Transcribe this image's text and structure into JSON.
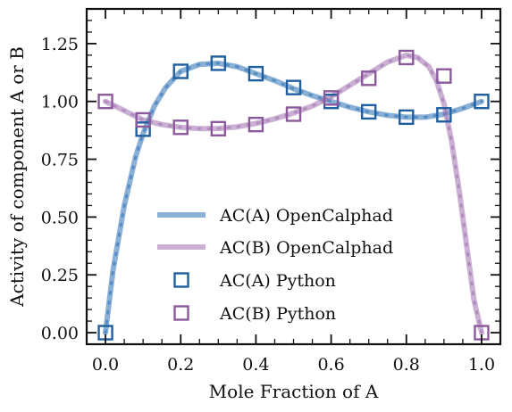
{
  "chart_data": {
    "type": "line",
    "title": "",
    "xlabel": "Mole Fraction of A",
    "ylabel": "Activity of component A or B",
    "xlim": [
      -0.05,
      1.05
    ],
    "ylim": [
      -0.05,
      1.4
    ],
    "xticks": [
      0.0,
      0.2,
      0.4,
      0.6,
      0.8,
      1.0
    ],
    "xtick_labels": [
      "0.0",
      "0.2",
      "0.4",
      "0.6",
      "0.8",
      "1.0"
    ],
    "yticks": [
      0.0,
      0.25,
      0.5,
      0.75,
      1.0,
      1.25
    ],
    "ytick_labels": [
      "0.00",
      "0.25",
      "0.50",
      "0.75",
      "1.00",
      "1.25"
    ],
    "grid": false,
    "legend_position": "lower-center",
    "series": [
      {
        "name": "AC(A) OpenCalphad",
        "kind": "line",
        "color": "#2c6fb4",
        "x": [
          0.0,
          0.02,
          0.05,
          0.08,
          0.1,
          0.13,
          0.16,
          0.2,
          0.25,
          0.3,
          0.35,
          0.4,
          0.45,
          0.5,
          0.55,
          0.6,
          0.65,
          0.7,
          0.75,
          0.8,
          0.85,
          0.9,
          0.95,
          1.0
        ],
        "y": [
          0.0,
          0.27,
          0.55,
          0.76,
          0.86,
          0.98,
          1.06,
          1.13,
          1.16,
          1.165,
          1.15,
          1.12,
          1.09,
          1.055,
          1.025,
          1.0,
          0.975,
          0.955,
          0.94,
          0.932,
          0.932,
          0.945,
          0.97,
          1.0
        ]
      },
      {
        "name": "AC(B) OpenCalphad",
        "kind": "line",
        "color": "#9e6fae",
        "x": [
          0.0,
          0.05,
          0.1,
          0.15,
          0.2,
          0.25,
          0.3,
          0.35,
          0.4,
          0.45,
          0.5,
          0.55,
          0.6,
          0.65,
          0.7,
          0.75,
          0.8,
          0.83,
          0.86,
          0.88,
          0.9,
          0.92,
          0.94,
          0.96,
          0.98,
          1.0
        ],
        "y": [
          1.0,
          0.96,
          0.92,
          0.9,
          0.888,
          0.882,
          0.883,
          0.89,
          0.905,
          0.925,
          0.95,
          0.98,
          1.02,
          1.07,
          1.12,
          1.17,
          1.2,
          1.19,
          1.15,
          1.09,
          0.99,
          0.83,
          0.62,
          0.38,
          0.14,
          0.0
        ]
      },
      {
        "name": "AC(A) Python",
        "kind": "marker",
        "color": "#1f5f9f",
        "x": [
          0.0,
          0.1,
          0.2,
          0.3,
          0.4,
          0.5,
          0.6,
          0.7,
          0.8,
          0.9,
          1.0
        ],
        "y": [
          0.0,
          0.88,
          1.13,
          1.165,
          1.12,
          1.06,
          1.0,
          0.955,
          0.932,
          0.942,
          1.0
        ]
      },
      {
        "name": "AC(B) Python",
        "kind": "marker",
        "color": "#8c5a9c",
        "x": [
          0.0,
          0.1,
          0.2,
          0.3,
          0.4,
          0.5,
          0.6,
          0.7,
          0.8,
          0.9,
          1.0
        ],
        "y": [
          1.0,
          0.92,
          0.888,
          0.882,
          0.9,
          0.945,
          1.015,
          1.1,
          1.19,
          1.11,
          0.0
        ]
      }
    ]
  }
}
